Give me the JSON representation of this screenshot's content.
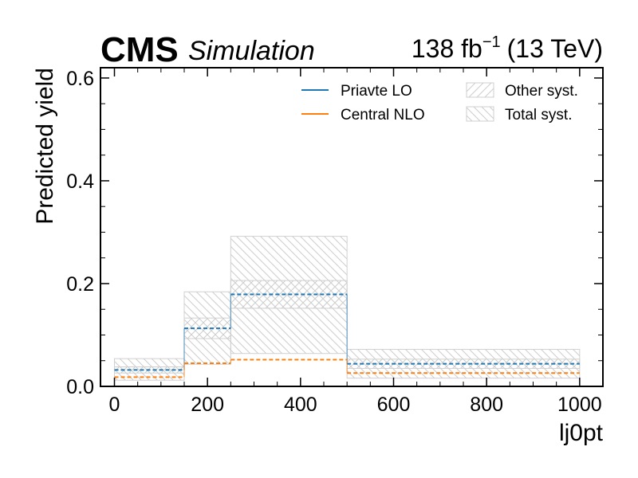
{
  "header": {
    "experiment": "CMS",
    "label": "Simulation",
    "lumi_value": "138 fb",
    "lumi_exponent": "−1",
    "energy": "(13 TeV)"
  },
  "chart_data": {
    "type": "line",
    "xlabel": "lj0pt",
    "ylabel": "Predicted yield",
    "xlim": [
      -30,
      1050
    ],
    "ylim": [
      0,
      0.62
    ],
    "x_ticks": [
      "0",
      "200",
      "400",
      "600",
      "800",
      "1000"
    ],
    "y_ticks": [
      "0.0",
      "0.2",
      "0.4",
      "0.6"
    ],
    "bin_edges": [
      0,
      150,
      250,
      500,
      1000
    ],
    "series": [
      {
        "name": "Priavte LO",
        "color": "#1f77b4",
        "style": "dashed",
        "values": [
          0.032,
          0.113,
          0.179,
          0.044
        ]
      },
      {
        "name": "Central NLO",
        "color": "#ff7f0e",
        "style": "dashed",
        "values": [
          0.018,
          0.045,
          0.052,
          0.026
        ]
      }
    ],
    "bands": [
      {
        "name": "Other syst.",
        "hatch": "////",
        "color": "#d0d0d0",
        "low": [
          0.026,
          0.093,
          0.152,
          0.035
        ],
        "high": [
          0.038,
          0.133,
          0.206,
          0.053
        ]
      },
      {
        "name": "Total syst.",
        "hatch": "\\\\\\\\",
        "color": "#d0d0d0",
        "low": [
          0.012,
          0.043,
          0.064,
          0.016
        ],
        "high": [
          0.054,
          0.184,
          0.292,
          0.072
        ]
      }
    ],
    "legend": {
      "placement": "top-right",
      "columns": 2
    },
    "grid": false
  }
}
